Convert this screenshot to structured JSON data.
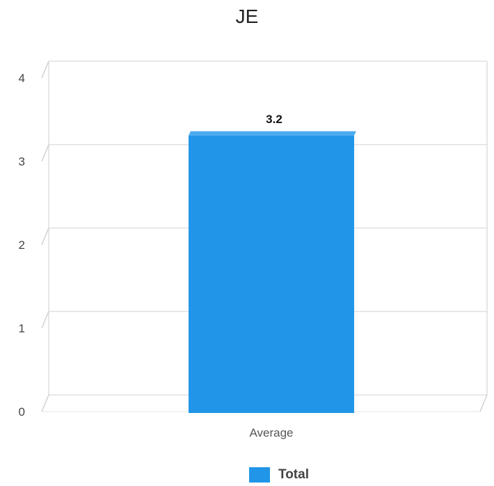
{
  "chart_data": {
    "type": "bar",
    "title": "JE",
    "categories": [
      "Average"
    ],
    "series": [
      {
        "name": "Total",
        "values": [
          3.2
        ],
        "color": "#2196e8"
      }
    ],
    "ylim": [
      0,
      4
    ],
    "yticks": [
      0,
      1,
      2,
      3,
      4
    ],
    "grid": true,
    "legend": "bottom",
    "data_labels": [
      "3.2"
    ]
  }
}
